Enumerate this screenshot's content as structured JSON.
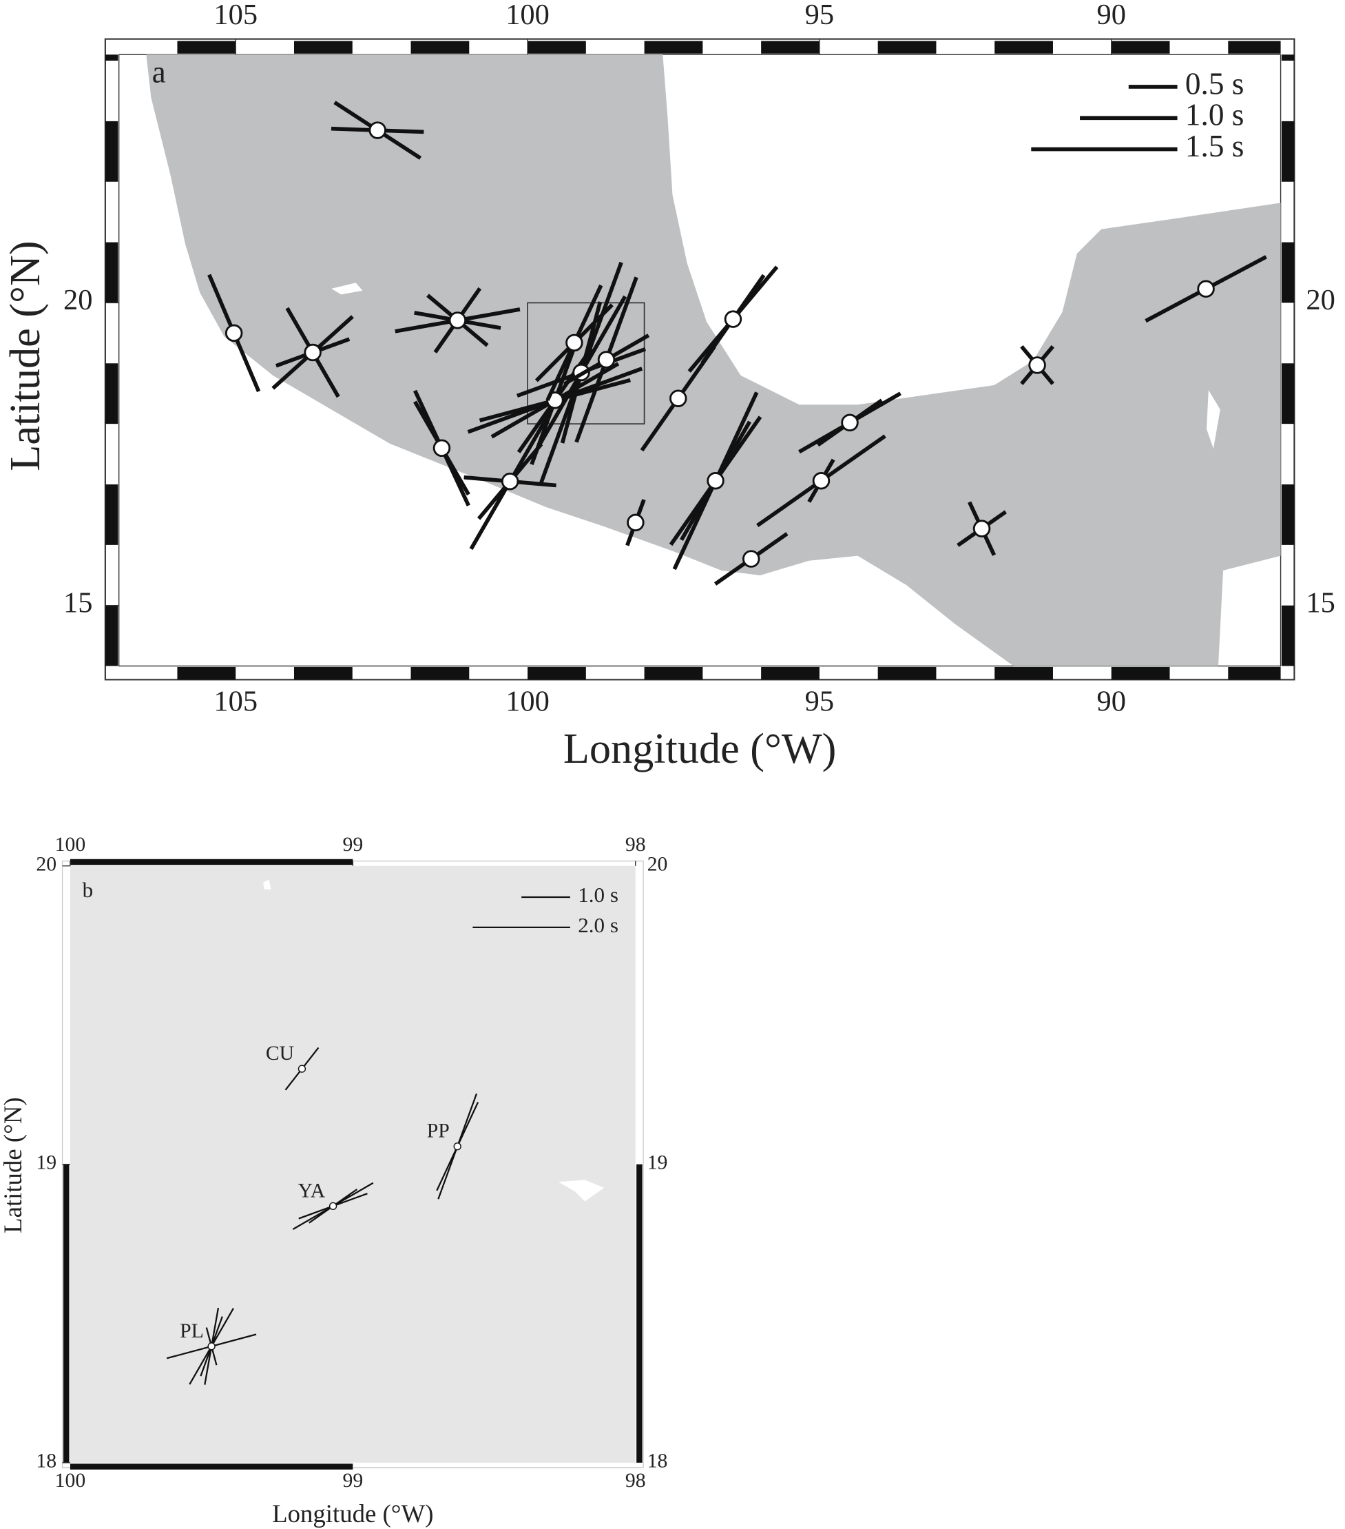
{
  "panels": [
    {
      "label": "a",
      "xlabel": "Longitude (°W)",
      "ylabel": "Latitude (°N)",
      "xlim": [
        107,
        87.1
      ],
      "ylim": [
        14,
        24.1
      ],
      "xticks": [
        105,
        100,
        95,
        90
      ],
      "yticks": [
        15,
        20
      ],
      "legend": [
        {
          "value": 0.5,
          "label": "0.5 s"
        },
        {
          "value": 1.0,
          "label": "1.0 s"
        },
        {
          "value": 1.5,
          "label": "1.5 s"
        }
      ],
      "inset": {
        "lon": [
          100,
          98
        ],
        "lat": [
          18,
          20
        ]
      },
      "stations": [
        {
          "lon": 102.57,
          "lat": 22.85,
          "bars": [
            {
              "azimuth": 123,
              "delay": 1.05
            },
            {
              "azimuth": 92,
              "delay": 0.95
            }
          ]
        },
        {
          "lon": 105.03,
          "lat": 19.5,
          "bars": [
            {
              "azimuth": 157,
              "delay": 1.3
            }
          ]
        },
        {
          "lon": 103.68,
          "lat": 19.18,
          "bars": [
            {
              "azimuth": 48,
              "delay": 1.1
            },
            {
              "azimuth": 150,
              "delay": 1.05
            },
            {
              "azimuth": 70,
              "delay": 0.8
            }
          ]
        },
        {
          "lon": 101.2,
          "lat": 19.71,
          "bars": [
            {
              "azimuth": 80,
              "delay": 1.3
            },
            {
              "azimuth": 130,
              "delay": 0.8
            },
            {
              "azimuth": 35,
              "delay": 0.8
            },
            {
              "azimuth": 100,
              "delay": 0.9
            }
          ]
        },
        {
          "lon": 101.47,
          "lat": 17.6,
          "bars": [
            {
              "azimuth": 155,
              "delay": 1.3
            },
            {
              "azimuth": 150,
              "delay": 1.1
            }
          ]
        },
        {
          "lon": 100.3,
          "lat": 17.05,
          "bars": [
            {
              "azimuth": 95,
              "delay": 0.95
            },
            {
              "azimuth": 30,
              "delay": 1.6
            },
            {
              "azimuth": 40,
              "delay": 1.0
            }
          ]
        },
        {
          "lon": 99.53,
          "lat": 18.39,
          "bars": [
            {
              "azimuth": 70,
              "delay": 1.9
            },
            {
              "azimuth": 60,
              "delay": 1.5
            },
            {
              "azimuth": 20,
              "delay": 1.4
            },
            {
              "azimuth": 35,
              "delay": 1.3
            },
            {
              "azimuth": 75,
              "delay": 1.6
            }
          ]
        },
        {
          "lon": 99.2,
          "lat": 19.34,
          "bars": [
            {
              "azimuth": 25,
              "delay": 1.3
            },
            {
              "azimuth": 45,
              "delay": 1.1
            }
          ]
        },
        {
          "lon": 99.08,
          "lat": 18.85,
          "bars": [
            {
              "azimuth": 20,
              "delay": 2.4
            },
            {
              "azimuth": 70,
              "delay": 1.4
            },
            {
              "azimuth": 30,
              "delay": 1.8
            },
            {
              "azimuth": 15,
              "delay": 1.5
            }
          ]
        },
        {
          "lon": 98.65,
          "lat": 19.06,
          "bars": [
            {
              "azimuth": 20,
              "delay": 1.8
            },
            {
              "azimuth": 60,
              "delay": 1.0
            }
          ]
        },
        {
          "lon": 98.15,
          "lat": 16.37,
          "bars": [
            {
              "azimuth": 20,
              "delay": 0.5
            }
          ]
        },
        {
          "lon": 97.42,
          "lat": 18.42,
          "bars": [
            {
              "azimuth": 35,
              "delay": 1.3
            }
          ]
        },
        {
          "lon": 96.48,
          "lat": 19.73,
          "bars": [
            {
              "azimuth": 40,
              "delay": 1.4
            },
            {
              "azimuth": 35,
              "delay": 1.1
            }
          ]
        },
        {
          "lon": 96.78,
          "lat": 17.06,
          "bars": [
            {
              "azimuth": 35,
              "delay": 1.6
            },
            {
              "azimuth": 25,
              "delay": 2.0
            },
            {
              "azimuth": 30,
              "delay": 1.4
            }
          ]
        },
        {
          "lon": 96.17,
          "lat": 15.77,
          "bars": [
            {
              "azimuth": 55,
              "delay": 0.9
            }
          ]
        },
        {
          "lon": 94.97,
          "lat": 17.06,
          "bars": [
            {
              "azimuth": 55,
              "delay": 1.6
            },
            {
              "azimuth": 30,
              "delay": 0.5
            }
          ]
        },
        {
          "lon": 94.48,
          "lat": 18.02,
          "bars": [
            {
              "azimuth": 60,
              "delay": 1.2
            },
            {
              "azimuth": 55,
              "delay": 0.8
            }
          ]
        },
        {
          "lon": 92.22,
          "lat": 16.27,
          "bars": [
            {
              "azimuth": 155,
              "delay": 0.6
            },
            {
              "azimuth": 55,
              "delay": 0.6
            }
          ]
        },
        {
          "lon": 91.27,
          "lat": 18.97,
          "bars": [
            {
              "azimuth": 40,
              "delay": 0.5
            },
            {
              "azimuth": 140,
              "delay": 0.5
            }
          ]
        },
        {
          "lon": 88.38,
          "lat": 20.23,
          "bars": [
            {
              "azimuth": 62,
              "delay": 1.4
            }
          ]
        }
      ]
    },
    {
      "label": "b",
      "xlabel": "Longitude (°W)",
      "ylabel": "Latitude (°N)",
      "xlim": [
        100,
        98
      ],
      "ylim": [
        18,
        20
      ],
      "xticks": [
        100,
        99,
        98
      ],
      "yticks": [
        18,
        19,
        20
      ],
      "legend": [
        {
          "value": 1.0,
          "label": "1.0 s"
        },
        {
          "value": 2.0,
          "label": "2.0 s"
        }
      ],
      "stations": [
        {
          "name": "CU",
          "lon": 99.18,
          "lat": 19.32,
          "bars": [
            {
              "azimuth": 38,
              "delay": 1.1
            }
          ]
        },
        {
          "name": "PP",
          "lon": 98.63,
          "lat": 19.06,
          "bars": [
            {
              "azimuth": 20,
              "delay": 2.3
            },
            {
              "azimuth": 25,
              "delay": 2.0
            }
          ]
        },
        {
          "name": "YA",
          "lon": 99.07,
          "lat": 18.86,
          "bars": [
            {
              "azimuth": 60,
              "delay": 1.9
            },
            {
              "azimuth": 70,
              "delay": 1.5
            },
            {
              "azimuth": 55,
              "delay": 1.2
            }
          ]
        },
        {
          "name": "PL",
          "lon": 99.5,
          "lat": 18.39,
          "bars": [
            {
              "azimuth": 75,
              "delay": 1.9
            },
            {
              "azimuth": 30,
              "delay": 1.8
            },
            {
              "azimuth": 20,
              "delay": 1.3
            },
            {
              "azimuth": 165,
              "delay": 0.8
            },
            {
              "azimuth": 10,
              "delay": 1.6
            }
          ]
        }
      ]
    }
  ]
}
